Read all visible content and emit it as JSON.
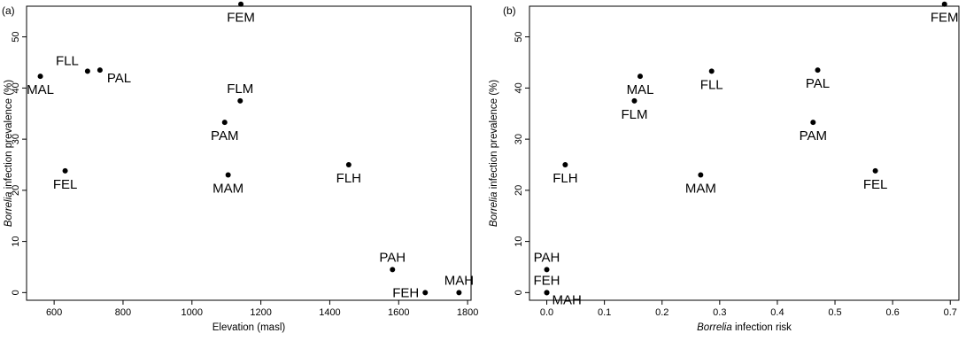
{
  "chart_data": [
    {
      "type": "scatter",
      "panel_tag": "(a)",
      "xlabel": "Elevation (masl)",
      "ylabel_italic": "Borrelia",
      "ylabel_rest": " infection prevalence (%)",
      "xlim": [
        520,
        1810
      ],
      "ylim": [
        -1.5,
        56
      ],
      "x_ticks": [
        600,
        800,
        1000,
        1200,
        1400,
        1600,
        1800
      ],
      "y_ticks": [
        0,
        10,
        20,
        30,
        40,
        50
      ],
      "point_color": "#000000",
      "points": [
        {
          "label": "FEM",
          "x": 1142,
          "y": 56.4,
          "label_pos": "below"
        },
        {
          "label": "MAL",
          "x": 560,
          "y": 42.3,
          "label_pos": "below"
        },
        {
          "label": "FLL",
          "x": 697,
          "y": 43.3,
          "label_pos": "above-left"
        },
        {
          "label": "PAL",
          "x": 733,
          "y": 43.5,
          "label_pos": "below-right"
        },
        {
          "label": "FLM",
          "x": 1140,
          "y": 37.5,
          "label_pos": "above"
        },
        {
          "label": "PAM",
          "x": 1095,
          "y": 33.3,
          "label_pos": "below"
        },
        {
          "label": "FEL",
          "x": 632,
          "y": 23.8,
          "label_pos": "below"
        },
        {
          "label": "MAM",
          "x": 1105,
          "y": 23.0,
          "label_pos": "below"
        },
        {
          "label": "FLH",
          "x": 1455,
          "y": 25.0,
          "label_pos": "below"
        },
        {
          "label": "PAH",
          "x": 1582,
          "y": 4.5,
          "label_pos": "above"
        },
        {
          "label": "FEH",
          "x": 1677,
          "y": 0.0,
          "label_pos": "left"
        },
        {
          "label": "MAH",
          "x": 1775,
          "y": 0.0,
          "label_pos": "above"
        }
      ]
    },
    {
      "type": "scatter",
      "panel_tag": "(b)",
      "xlabel_italic": "Borrelia",
      "xlabel_rest": " infection risk",
      "ylabel_italic": "Borrelia",
      "ylabel_rest": " infection prevalence (%)",
      "xlim": [
        -0.03,
        0.715
      ],
      "ylim": [
        -1.5,
        56
      ],
      "x_ticks": [
        0.0,
        0.1,
        0.2,
        0.3,
        0.4,
        0.5,
        0.6,
        0.7
      ],
      "x_tick_labels": [
        "0.0",
        "0.1",
        "0.2",
        "0.3",
        "0.4",
        "0.5",
        "0.6",
        "0.7"
      ],
      "y_ticks": [
        0,
        10,
        20,
        30,
        40,
        50
      ],
      "point_color": "#000000",
      "points": [
        {
          "label": "FEM",
          "x": 0.69,
          "y": 56.4,
          "label_pos": "below"
        },
        {
          "label": "MAL",
          "x": 0.162,
          "y": 42.3,
          "label_pos": "below"
        },
        {
          "label": "FLL",
          "x": 0.286,
          "y": 43.3,
          "label_pos": "below"
        },
        {
          "label": "PAL",
          "x": 0.47,
          "y": 43.5,
          "label_pos": "below"
        },
        {
          "label": "FLM",
          "x": 0.152,
          "y": 37.5,
          "label_pos": "below"
        },
        {
          "label": "PAM",
          "x": 0.462,
          "y": 33.3,
          "label_pos": "below"
        },
        {
          "label": "FEL",
          "x": 0.57,
          "y": 23.8,
          "label_pos": "below"
        },
        {
          "label": "MAM",
          "x": 0.267,
          "y": 23.0,
          "label_pos": "below"
        },
        {
          "label": "FLH",
          "x": 0.032,
          "y": 25.0,
          "label_pos": "below"
        },
        {
          "label": "PAH",
          "x": 0.0,
          "y": 4.5,
          "label_pos": "above"
        },
        {
          "label": "FEH",
          "x": 0.0,
          "y": 0.0,
          "label_pos": "above"
        },
        {
          "label": "MAH",
          "x": 0.0,
          "y": 0.0,
          "label_pos": "right"
        }
      ]
    }
  ]
}
